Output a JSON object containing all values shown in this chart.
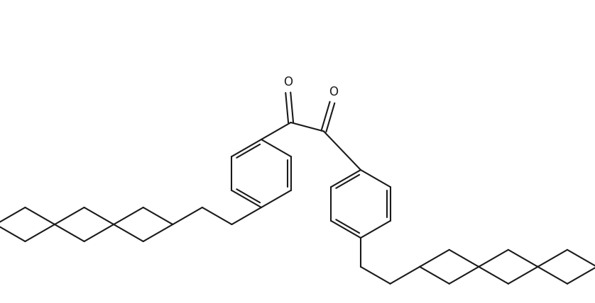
{
  "background_color": "#ffffff",
  "line_color": "#1a1a1a",
  "line_width": 1.5,
  "fig_width": 8.38,
  "fig_height": 4.28,
  "dpi": 100
}
